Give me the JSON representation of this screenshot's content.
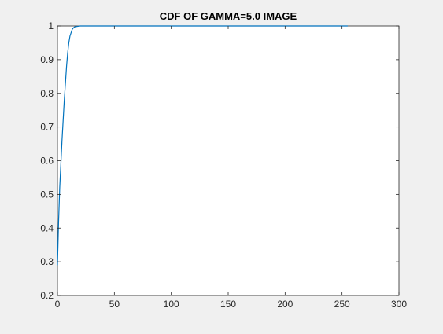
{
  "chart_data": {
    "type": "line",
    "title": "CDF OF GAMMA=5.0 IMAGE",
    "xlabel": "",
    "ylabel": "",
    "xlim": [
      0,
      300
    ],
    "ylim": [
      0.2,
      1
    ],
    "xticks": [
      0,
      50,
      100,
      150,
      200,
      250,
      300
    ],
    "xtick_labels": [
      "0",
      "50",
      "100",
      "150",
      "200",
      "250",
      "300"
    ],
    "yticks": [
      0.2,
      0.3,
      0.4,
      0.5,
      0.6,
      0.7,
      0.8,
      0.9,
      1
    ],
    "ytick_labels": [
      "0.2",
      "0.3",
      "0.4",
      "0.5",
      "0.6",
      "0.7",
      "0.8",
      "0.9",
      "1"
    ],
    "grid": false,
    "legend": "none",
    "series": [
      {
        "color": "#0072bd",
        "x": [
          0,
          1,
          2,
          3,
          4,
          5,
          6,
          7,
          8,
          9,
          10,
          11,
          12,
          13,
          14,
          15,
          16,
          18,
          20,
          25,
          30,
          50,
          100,
          150,
          200,
          255
        ],
        "y": [
          0.29,
          0.42,
          0.52,
          0.59,
          0.66,
          0.72,
          0.78,
          0.83,
          0.88,
          0.92,
          0.95,
          0.97,
          0.98,
          0.99,
          0.994,
          0.997,
          0.998,
          0.999,
          1,
          1,
          1,
          1,
          1,
          1,
          1,
          1
        ]
      }
    ]
  }
}
